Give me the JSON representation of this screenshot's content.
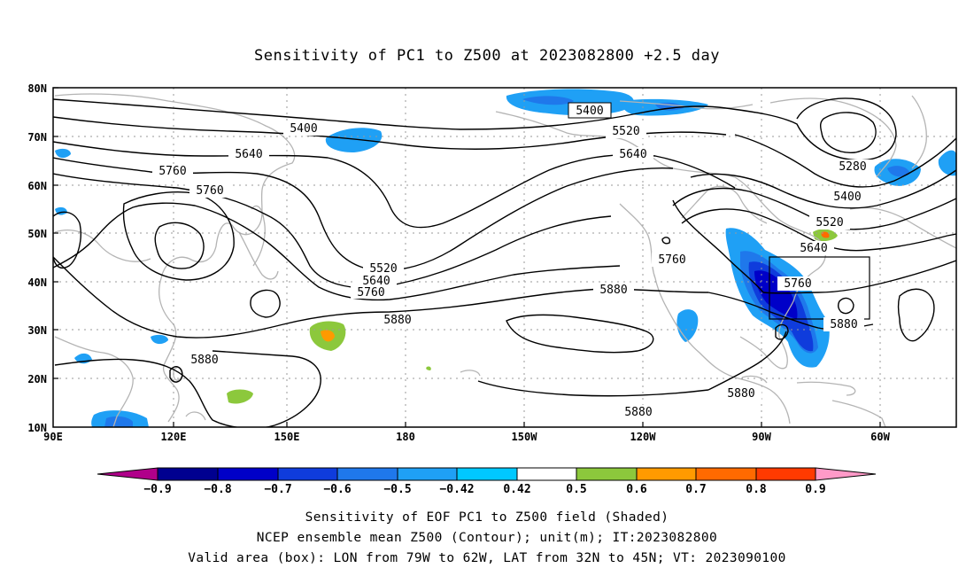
{
  "title": "Sensitivity of PC1 to Z500 at 2023082800 +2.5 day",
  "lat_labels": [
    "80N",
    "70N",
    "60N",
    "50N",
    "40N",
    "30N",
    "20N",
    "10N"
  ],
  "lon_labels": [
    "90E",
    "120E",
    "150E",
    "180",
    "150W",
    "120W",
    "90W",
    "60W"
  ],
  "contour_labels": [
    "5400",
    "5400",
    "5520",
    "5640",
    "5640",
    "5760",
    "5760",
    "5280",
    "5400",
    "5520",
    "5640",
    "5760",
    "5520",
    "5640",
    "5760",
    "5880",
    "5880",
    "5760",
    "5880",
    "5880",
    "5880",
    "5880"
  ],
  "colorbar": {
    "labels": [
      "-0.9",
      "-0.8",
      "-0.7",
      "-0.6",
      "-0.5",
      "-0.42",
      "0.42",
      "0.5",
      "0.6",
      "0.7",
      "0.8",
      "0.9"
    ],
    "colors": [
      "#b0008a",
      "#000090",
      "#0000c8",
      "#0f3cdc",
      "#1f78eb",
      "#1fa0f5",
      "#00c8ff",
      "#ffffff",
      "#8cc83c",
      "#ff9a00",
      "#ff6a00",
      "#ff3a00",
      "#ff0000",
      "#ff9ac8"
    ]
  },
  "captions": [
    "Sensitivity of EOF PC1 to Z500 field (Shaded)",
    "NCEP ensemble mean Z500 (Contour); unit(m); IT:2023082800",
    "Valid area (box): LON from 79W to 62W, LAT from 32N to 45N; VT: 2023090100"
  ]
}
